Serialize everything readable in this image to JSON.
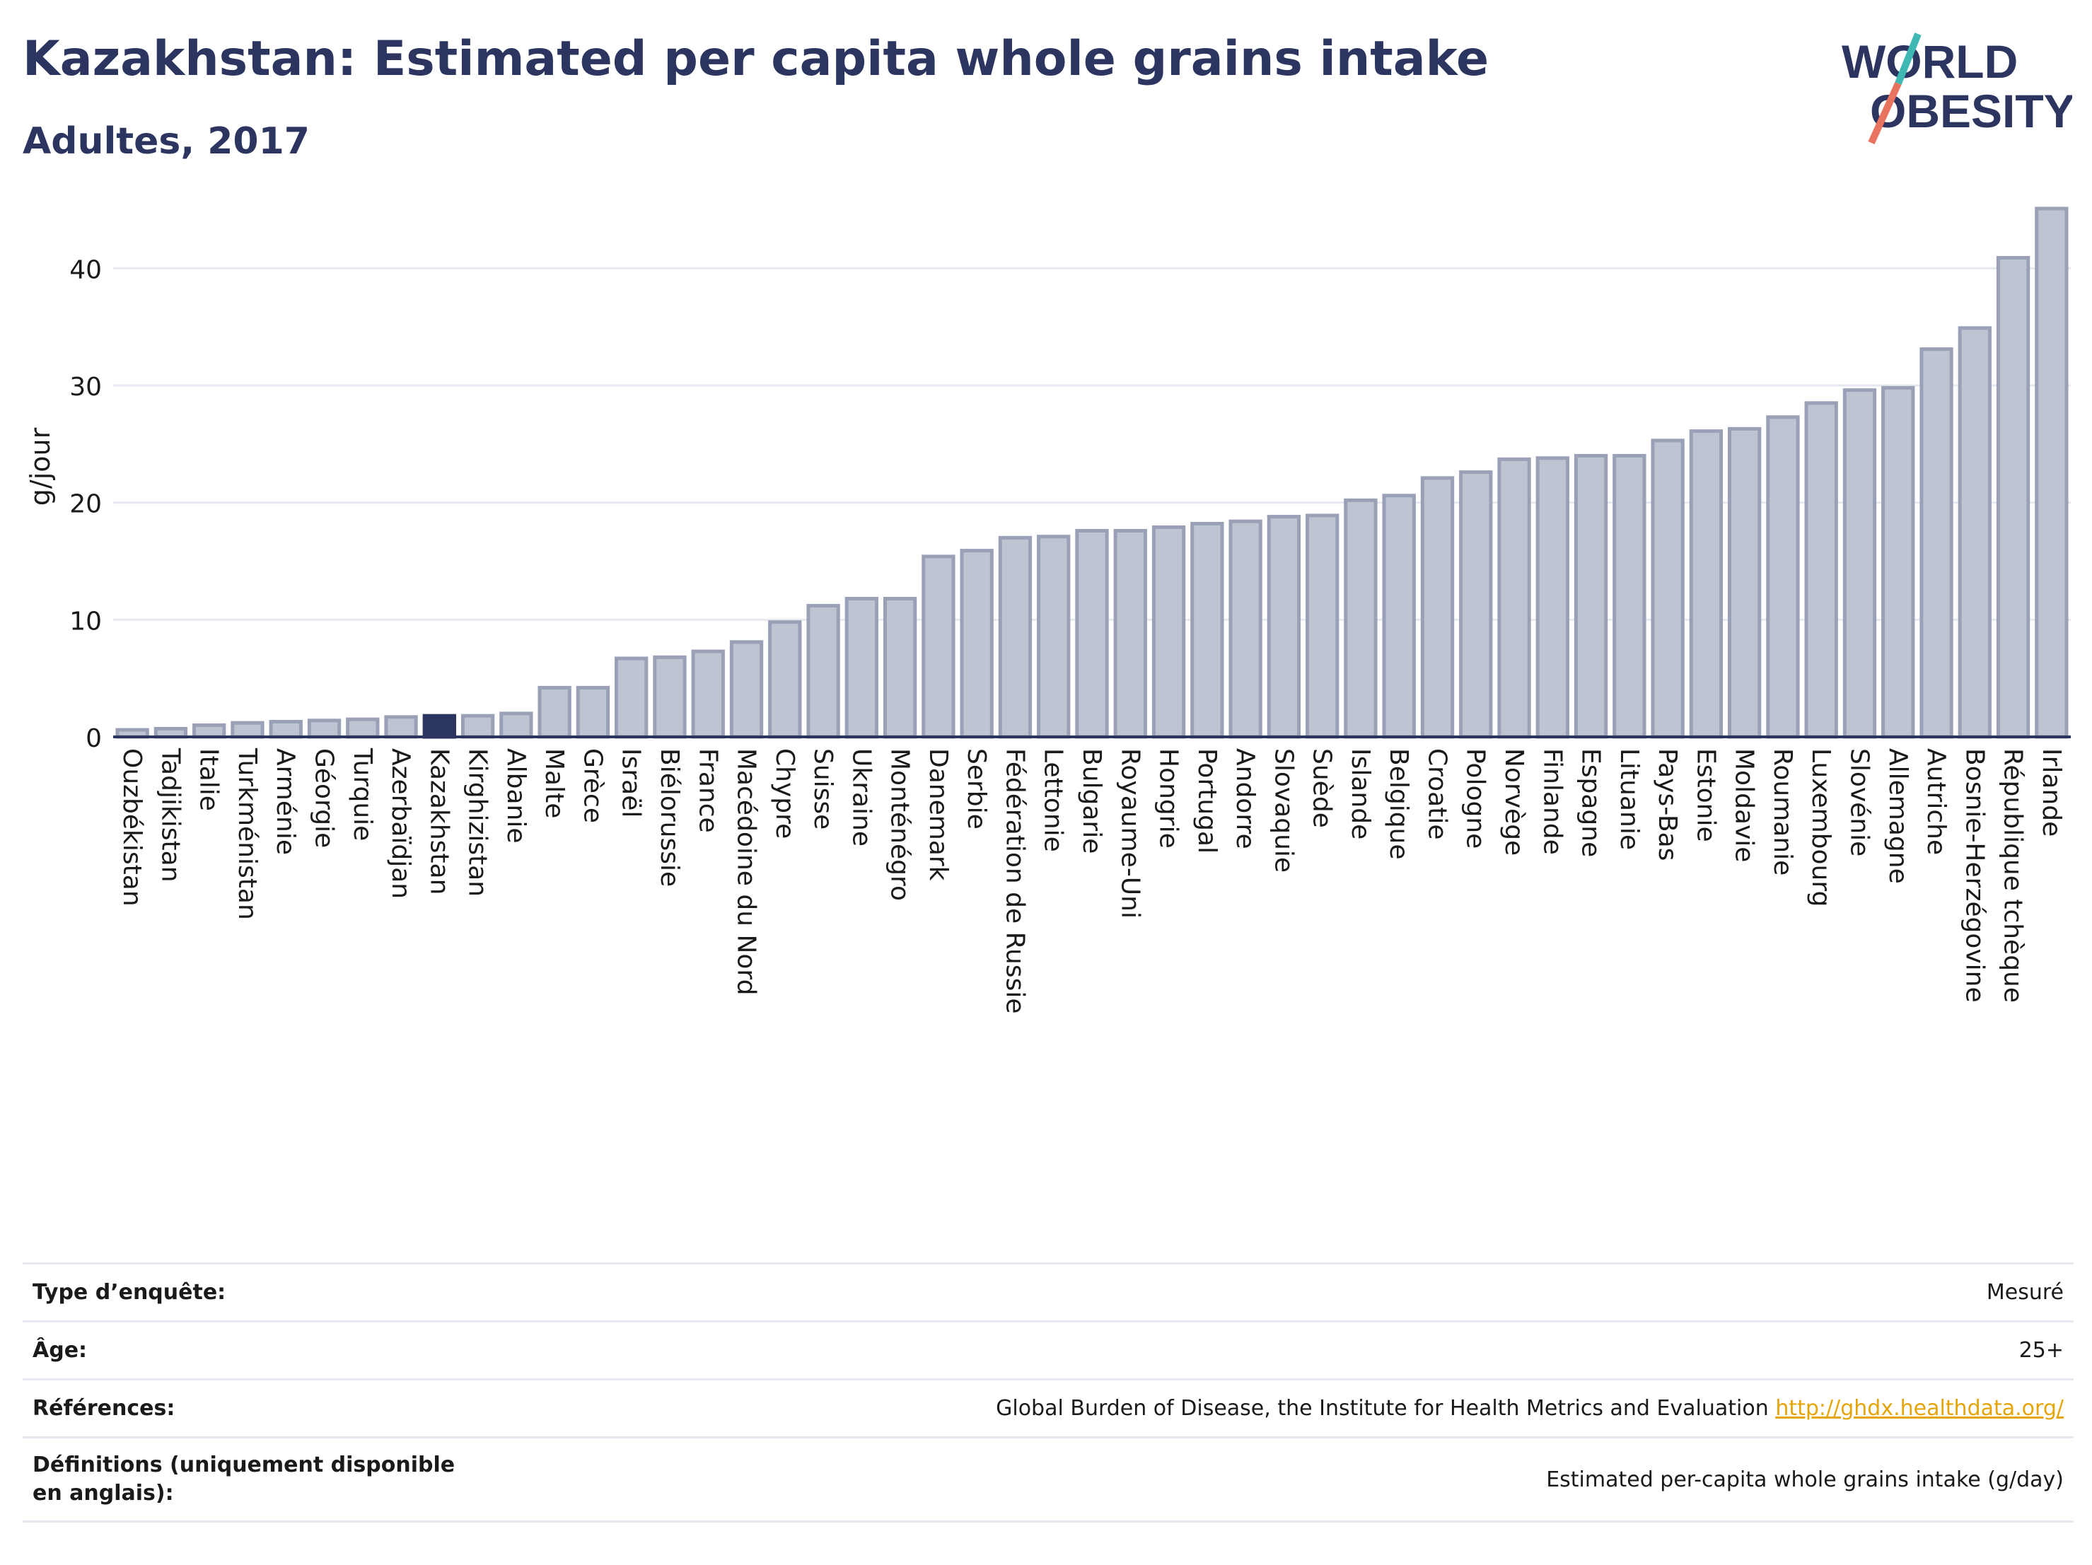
{
  "header": {
    "title": "Kazakhstan: Estimated per capita whole grains intake",
    "subtitle": "Adultes, 2017"
  },
  "logo": {
    "line1": "WORLD",
    "line2": "OBESITY"
  },
  "colors": {
    "bar": "#bfc4d2",
    "bar_stroke": "#9aa1b7",
    "highlight": "#2b3560",
    "title": "#2b3560",
    "grid": "#e6e9ef",
    "link": "#e5a50a"
  },
  "chart_data": {
    "type": "bar",
    "title": "Kazakhstan: Estimated per capita whole grains intake",
    "subtitle": "Adultes, 2017",
    "xlabel": "",
    "ylabel": "g/jour",
    "ylim": [
      0,
      46
    ],
    "yticks": [
      0,
      10,
      20,
      30,
      40
    ],
    "grid": true,
    "highlight": "Kazakhstan",
    "categories": [
      "Ouzbékistan",
      "Tadjikistan",
      "Italie",
      "Turkménistan",
      "Arménie",
      "Géorgie",
      "Turquie",
      "Azerbaïdjan",
      "Kazakhstan",
      "Kirghizistan",
      "Albanie",
      "Malte",
      "Grèce",
      "Israël",
      "Biélorussie",
      "France",
      "Macédoine du Nord",
      "Chypre",
      "Suisse",
      "Ukraine",
      "Monténégro",
      "Danemark",
      "Serbie",
      "Fédération de Russie",
      "Lettonie",
      "Bulgarie",
      "Royaume-Uni",
      "Hongrie",
      "Portugal",
      "Andorre",
      "Slovaquie",
      "Suède",
      "Islande",
      "Belgique",
      "Croatie",
      "Pologne",
      "Norvège",
      "Finlande",
      "Espagne",
      "Lituanie",
      "Pays-Bas",
      "Estonie",
      "Moldavie",
      "Roumanie",
      "Luxembourg",
      "Slovénie",
      "Allemagne",
      "Autriche",
      "Bosnie-Herzégovine",
      "République tchèque",
      "Irlande"
    ],
    "values": [
      0.6,
      0.7,
      1.0,
      1.2,
      1.3,
      1.4,
      1.5,
      1.7,
      1.8,
      1.8,
      2.0,
      4.2,
      4.2,
      6.7,
      6.8,
      7.3,
      8.1,
      9.8,
      11.2,
      11.8,
      11.8,
      15.4,
      15.9,
      17.0,
      17.1,
      17.6,
      17.6,
      17.9,
      18.2,
      18.4,
      18.8,
      18.9,
      20.2,
      20.6,
      22.1,
      22.6,
      23.7,
      23.8,
      24.0,
      24.0,
      25.3,
      26.1,
      26.3,
      27.3,
      28.5,
      29.6,
      29.8,
      33.1,
      34.9,
      40.9,
      45.1
    ]
  },
  "info": {
    "survey_type_label": "Type d’enquête:",
    "survey_type_value": "Mesuré",
    "age_label": "Âge:",
    "age_value": "25+",
    "refs_label": "Références:",
    "refs_value": "Global Burden of Disease, the Institute for Health Metrics and Evaluation",
    "refs_link": "http://ghdx.healthdata.org/",
    "defs_label": "Définitions (uniquement disponible en anglais):",
    "defs_value": "Estimated per-capita whole grains intake (g/day)"
  }
}
